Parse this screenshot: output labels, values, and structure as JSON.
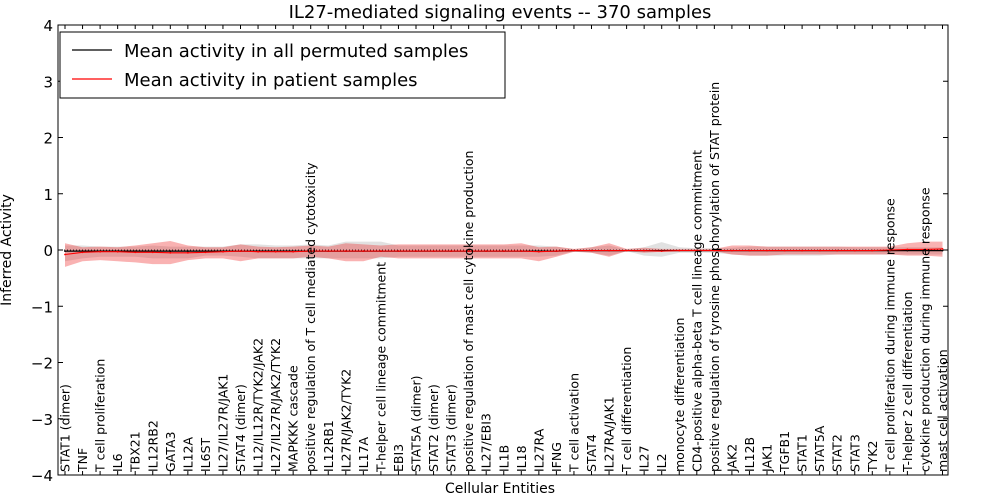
{
  "chart_data": {
    "type": "line",
    "title": "IL27-mediated signaling events -- 370 samples",
    "xlabel": "Cellular Entities",
    "ylabel": "Inferred Activity",
    "ylim": [
      -4,
      4
    ],
    "yticks": [
      4,
      3,
      2,
      1,
      0,
      -1,
      -2,
      -3,
      -4
    ],
    "ytick_labels": [
      "4",
      "3",
      "2",
      "1",
      "0",
      "−1",
      "−2",
      "−3",
      "−4"
    ],
    "legend": {
      "placement": "top-left",
      "entries": [
        {
          "label": "Mean activity in all permuted samples",
          "color": "#000000"
        },
        {
          "label": "Mean activity in patient samples",
          "color": "#ff0000"
        }
      ]
    },
    "categories": [
      "STAT1 (dimer)",
      "TNF",
      "T cell proliferation",
      "IL6",
      "TBX21",
      "IL12RB2",
      "GATA3",
      "IL12A",
      "IL6ST",
      "IL27/IL27R/JAK1",
      "STAT4 (dimer)",
      "IL12/IL12R/TYK2/JAK2",
      "IL27/IL27R/JAK2/TYK2",
      "MAPKKK cascade",
      "positive regulation of T cell mediated cytotoxicity",
      "IL12RB1",
      "IL27R/JAK2/TYK2",
      "IL17A",
      "T-helper cell lineage commitment",
      "EBI3",
      "STAT5A (dimer)",
      "STAT2 (dimer)",
      "STAT3 (dimer)",
      "positive regulation of mast cell cytokine production",
      "IL27/EBI3",
      "IL1B",
      "IL18",
      "IL27RA",
      "IFNG",
      "T cell activation",
      "STAT4",
      "IL27RA/JAK1",
      "T cell differentiation",
      "IL27",
      "IL2",
      "monocyte differentiation",
      "CD4-positive alpha-beta T cell lineage commitment",
      "positive regulation of tyrosine phosphorylation of STAT protein",
      "JAK2",
      "IL12B",
      "JAK1",
      "TGFB1",
      "STAT1",
      "STAT5A",
      "STAT2",
      "STAT3",
      "TYK2",
      "T cell proliferation during immune response",
      "T-helper 2 cell differentiation",
      "cytokine production during immune response",
      "mast cell activation"
    ],
    "series": [
      {
        "name": "Mean activity in all permuted samples",
        "color": "#000000",
        "values": [
          -0.02,
          -0.02,
          -0.02,
          -0.02,
          -0.02,
          -0.02,
          -0.02,
          -0.02,
          -0.02,
          -0.02,
          -0.02,
          -0.02,
          -0.02,
          -0.02,
          -0.02,
          -0.02,
          -0.02,
          -0.02,
          -0.02,
          -0.02,
          -0.02,
          -0.02,
          -0.02,
          -0.02,
          -0.02,
          -0.02,
          -0.02,
          -0.02,
          -0.02,
          -0.01,
          -0.01,
          -0.01,
          -0.01,
          -0.01,
          -0.01,
          -0.01,
          -0.01,
          -0.01,
          -0.01,
          -0.01,
          -0.01,
          -0.01,
          -0.01,
          -0.01,
          -0.01,
          -0.01,
          -0.01,
          -0.01,
          -0.01,
          -0.01,
          -0.01
        ],
        "lower": [
          -0.2,
          -0.15,
          -0.12,
          -0.12,
          -0.12,
          -0.15,
          -0.15,
          -0.15,
          -0.1,
          -0.1,
          -0.12,
          -0.15,
          -0.15,
          -0.15,
          -0.15,
          -0.15,
          -0.15,
          -0.15,
          -0.15,
          -0.12,
          -0.12,
          -0.12,
          -0.12,
          -0.12,
          -0.12,
          -0.12,
          -0.12,
          -0.12,
          -0.1,
          -0.02,
          -0.05,
          -0.1,
          -0.02,
          -0.1,
          -0.12,
          -0.05,
          -0.05,
          -0.05,
          -0.08,
          -0.1,
          -0.1,
          -0.1,
          -0.1,
          -0.1,
          -0.08,
          -0.08,
          -0.08,
          -0.08,
          -0.08,
          -0.08,
          -0.08
        ],
        "upper": [
          0.08,
          0.08,
          0.06,
          0.06,
          0.06,
          0.08,
          0.06,
          0.06,
          0.06,
          0.06,
          0.1,
          0.1,
          0.08,
          0.08,
          0.1,
          0.08,
          0.15,
          0.15,
          0.15,
          0.08,
          0.08,
          0.08,
          0.08,
          0.08,
          0.08,
          0.08,
          0.08,
          0.08,
          0.06,
          0.01,
          0.05,
          0.08,
          0.01,
          0.05,
          0.14,
          0.05,
          0.03,
          0.03,
          0.04,
          0.06,
          0.06,
          0.06,
          0.06,
          0.06,
          0.06,
          0.05,
          0.05,
          0.05,
          0.05,
          0.05,
          0.05
        ]
      },
      {
        "name": "Mean activity in patient samples",
        "color": "#ff0000",
        "values": [
          -0.08,
          -0.04,
          -0.03,
          -0.03,
          -0.04,
          -0.04,
          -0.05,
          -0.05,
          -0.04,
          -0.03,
          -0.02,
          -0.03,
          -0.03,
          -0.03,
          -0.02,
          -0.02,
          -0.02,
          -0.02,
          -0.02,
          -0.02,
          -0.02,
          -0.02,
          -0.02,
          -0.02,
          -0.02,
          -0.02,
          -0.02,
          -0.03,
          -0.02,
          -0.01,
          -0.01,
          -0.01,
          -0.01,
          -0.01,
          -0.02,
          -0.01,
          -0.01,
          -0.01,
          -0.01,
          -0.01,
          -0.01,
          -0.01,
          -0.01,
          -0.01,
          -0.01,
          -0.01,
          -0.01,
          0.0,
          0.01,
          0.01,
          0.02
        ],
        "lower": [
          -0.3,
          -0.2,
          -0.18,
          -0.2,
          -0.22,
          -0.25,
          -0.25,
          -0.18,
          -0.15,
          -0.15,
          -0.2,
          -0.15,
          -0.15,
          -0.15,
          -0.12,
          -0.15,
          -0.2,
          -0.2,
          -0.12,
          -0.15,
          -0.15,
          -0.15,
          -0.15,
          -0.15,
          -0.15,
          -0.15,
          -0.15,
          -0.2,
          -0.12,
          -0.03,
          -0.05,
          -0.12,
          -0.02,
          -0.05,
          -0.03,
          -0.02,
          -0.02,
          -0.02,
          -0.08,
          -0.1,
          -0.1,
          -0.08,
          -0.08,
          -0.08,
          -0.08,
          -0.08,
          -0.08,
          -0.08,
          -0.1,
          -0.1,
          -0.12
        ],
        "upper": [
          0.12,
          0.05,
          0.06,
          0.05,
          0.08,
          0.12,
          0.16,
          0.08,
          0.05,
          0.05,
          0.1,
          0.06,
          0.05,
          0.06,
          0.08,
          0.06,
          0.12,
          0.1,
          0.08,
          0.1,
          0.1,
          0.1,
          0.1,
          0.1,
          0.1,
          0.1,
          0.12,
          0.05,
          0.06,
          0.02,
          0.05,
          0.12,
          0.02,
          0.04,
          0.02,
          0.02,
          0.02,
          0.02,
          0.08,
          0.08,
          0.06,
          0.06,
          0.06,
          0.06,
          0.06,
          0.06,
          0.06,
          0.06,
          0.12,
          0.15,
          0.15
        ]
      }
    ]
  }
}
